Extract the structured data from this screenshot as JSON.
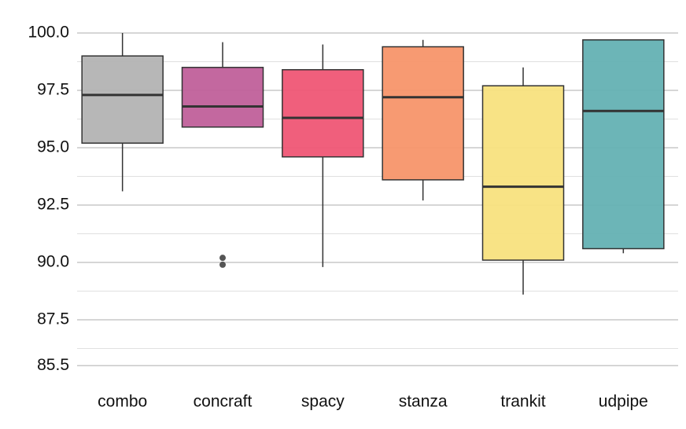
{
  "chart_data": {
    "type": "box",
    "categories": [
      "combo",
      "concraft",
      "spacy",
      "stanza",
      "trankit",
      "udpipe"
    ],
    "colors": [
      "#b3b3b3",
      "#c0609a",
      "#ef5675",
      "#f7956a",
      "#f8e27e",
      "#64b1b3"
    ],
    "boxes": [
      {
        "min": 93.1,
        "q1": 95.2,
        "median": 97.3,
        "q3": 99.0,
        "max": 100.0,
        "outliers": []
      },
      {
        "min": 95.9,
        "q1": 95.9,
        "median": 96.8,
        "q3": 98.5,
        "max": 99.6,
        "outliers": [
          90.2,
          89.9
        ]
      },
      {
        "min": 89.8,
        "q1": 94.6,
        "median": 96.3,
        "q3": 98.4,
        "max": 99.5,
        "outliers": []
      },
      {
        "min": 92.7,
        "q1": 93.6,
        "median": 97.2,
        "q3": 99.4,
        "max": 99.7,
        "outliers": []
      },
      {
        "min": 88.6,
        "q1": 90.1,
        "median": 93.3,
        "q3": 97.7,
        "max": 98.5,
        "outliers": []
      },
      {
        "min": 90.4,
        "q1": 90.6,
        "median": 96.6,
        "q3": 99.7,
        "max": 99.7,
        "outliers": []
      }
    ],
    "ylim": [
      85,
      100.6
    ],
    "yticks": [
      {
        "value": 100,
        "label": "100.0"
      },
      97.5,
      {
        "value": 95,
        "label": "95.0"
      },
      92.5,
      {
        "value": 90,
        "label": "90.0"
      },
      87.5,
      85.5
    ],
    "minor_yticks": [
      98.75,
      96.25,
      93.75,
      91.25,
      88.75,
      86.25
    ],
    "grid": true
  }
}
